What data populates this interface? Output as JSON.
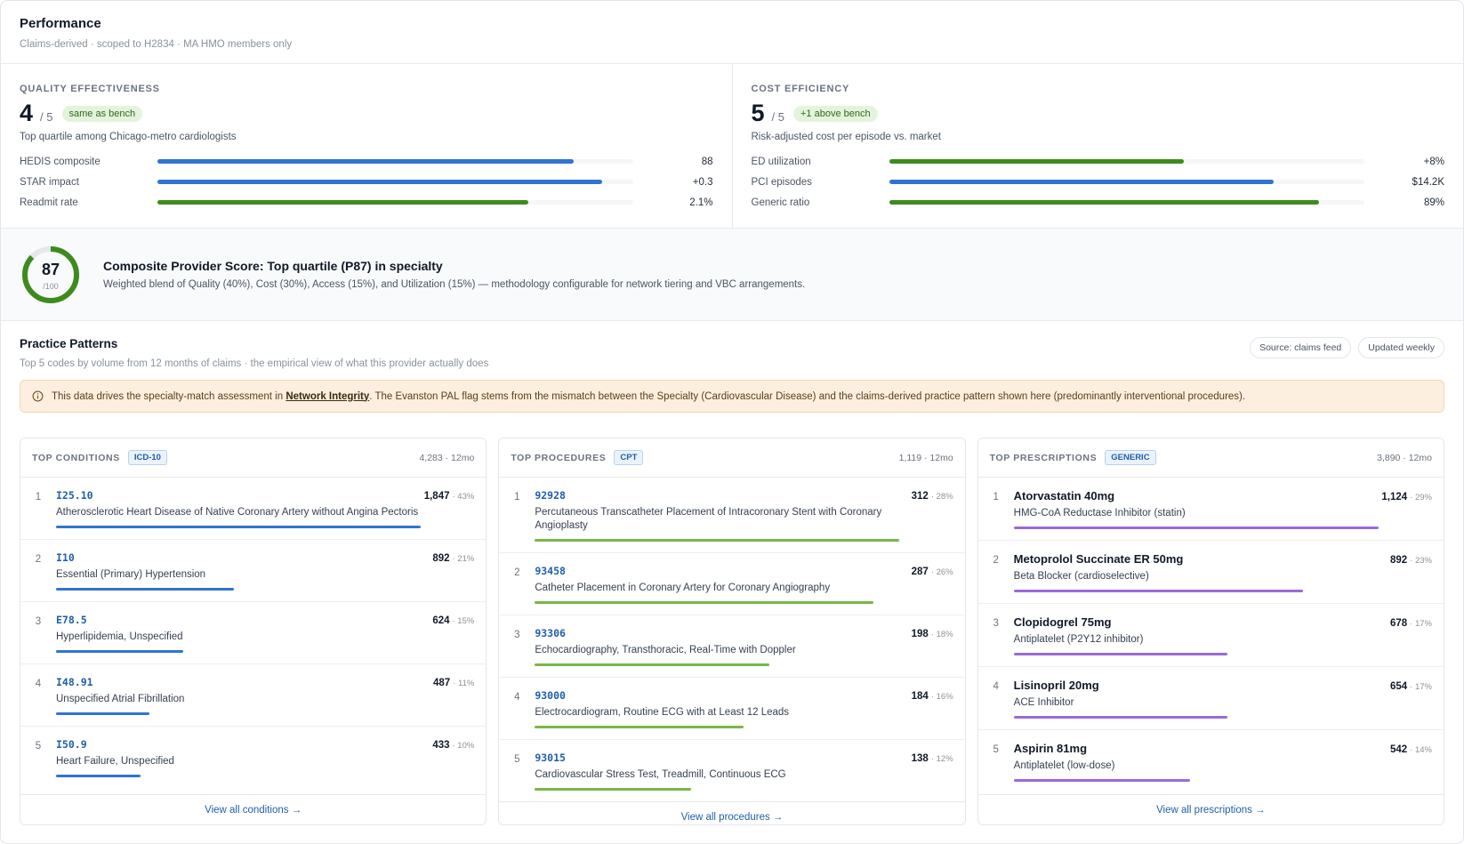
{
  "header": {
    "title": "Performance",
    "subtitle": "Claims-derived · scoped to H2834 · MA HMO members only"
  },
  "scorecards": [
    {
      "label": "QUALITY EFFECTIVENESS",
      "score": 4,
      "out_of": "/ 5",
      "badge": "same as bench",
      "description": "Top quartile among Chicago-metro cardiologists",
      "metrics": [
        {
          "name": "HEDIS composite",
          "value": 88,
          "color": "#2f74d0"
        },
        {
          "name": "STAR impact",
          "value": "+0.3",
          "color": "#2f74d0"
        },
        {
          "name": "Readmit rate",
          "value": "2.1%",
          "color": "#3d8b1f"
        }
      ]
    },
    {
      "label": "COST EFFICIENCY",
      "score": 5,
      "out_of": "/ 5",
      "badge": "+1 above bench",
      "description": "Risk-adjusted cost per episode vs. market",
      "metrics": [
        {
          "name": "ED utilization",
          "value": "+8%",
          "color": "#3d8b1f"
        },
        {
          "name": "PCI episodes",
          "value": "$14.2K",
          "color": "#2f74d0"
        },
        {
          "name": "Generic ratio",
          "value": "89%",
          "color": "#3d8b1f"
        }
      ]
    }
  ],
  "composite": {
    "score": 87,
    "scale": "/100",
    "title": "Composite Provider Score: Top quartile (P87) in specialty",
    "description": "Weighted blend of Quality (40%), Cost (30%), Access (15%), and Utilization (15%) — methodology configurable for network tiering and VBC arrangements."
  },
  "practice": {
    "title": "Practice Patterns",
    "subtitle": "Top 5 codes by volume from 12 months of claims · the empirical view of what this provider actually does",
    "tags": [
      "Source: claims feed",
      "Updated weekly"
    ],
    "notice": {
      "before": "This data drives the specialty-match assessment in ",
      "link": "Network Integrity",
      "after": ". The Evanston PAL flag stems from the mismatch between the Specialty (Cardiovascular Disease) and the claims-derived practice pattern shown here (predominantly interventional procedures)."
    }
  },
  "columns": [
    {
      "title": "TOP CONDITIONS",
      "tag": "ICD-10",
      "total": "4,283 · 12mo",
      "color": "#2f74d0",
      "footer": "View all conditions →",
      "items": [
        {
          "rank": 1,
          "code": "I25.10",
          "description": "Atherosclerotic Heart Disease of Native Coronary Artery without Angina Pectoris",
          "count": "1,847",
          "share": "· 43%"
        },
        {
          "rank": 2,
          "code": "I10",
          "description": "Essential (Primary) Hypertension",
          "count": "892",
          "share": "· 21%"
        },
        {
          "rank": 3,
          "code": "E78.5",
          "description": "Hyperlipidemia, Unspecified",
          "count": "624",
          "share": "· 15%"
        },
        {
          "rank": 4,
          "code": "I48.91",
          "description": "Unspecified Atrial Fibrillation",
          "count": "487",
          "share": "· 11%"
        },
        {
          "rank": 5,
          "code": "I50.9",
          "description": "Heart Failure, Unspecified",
          "count": "433",
          "share": "· 10%"
        }
      ]
    },
    {
      "title": "TOP PROCEDURES",
      "tag": "CPT",
      "total": "1,119 · 12mo",
      "color": "#7ab648",
      "footer": "View all procedures →",
      "items": [
        {
          "rank": 1,
          "code": "92928",
          "description": "Percutaneous Transcatheter Placement of Intracoronary Stent with Coronary Angioplasty",
          "count": "312",
          "share": "· 28%"
        },
        {
          "rank": 2,
          "code": "93458",
          "description": "Catheter Placement in Coronary Artery for Coronary Angiography",
          "count": "287",
          "share": "· 26%"
        },
        {
          "rank": 3,
          "code": "93306",
          "description": "Echocardiography, Transthoracic, Real-Time with Doppler",
          "count": "198",
          "share": "· 18%"
        },
        {
          "rank": 4,
          "code": "93000",
          "description": "Electrocardiogram, Routine ECG with at Least 12 Leads",
          "count": "184",
          "share": "· 16%"
        },
        {
          "rank": 5,
          "code": "93015",
          "description": "Cardiovascular Stress Test, Treadmill, Continuous ECG",
          "count": "138",
          "share": "· 12%"
        }
      ]
    },
    {
      "title": "TOP PRESCRIPTIONS",
      "tag": "GENERIC",
      "total": "3,890 · 12mo",
      "color": "#9b6ad6",
      "footer": "View all prescriptions →",
      "items": [
        {
          "rank": 1,
          "name": "Atorvastatin 40mg",
          "class": "HMG-CoA Reductase Inhibitor (statin)",
          "count": "1,124",
          "share": "· 29%"
        },
        {
          "rank": 2,
          "name": "Metoprolol Succinate ER 50mg",
          "class": "Beta Blocker (cardioselective)",
          "count": "892",
          "share": "· 23%"
        },
        {
          "rank": 3,
          "name": "Clopidogrel 75mg",
          "class": "Antiplatelet (P2Y12 inhibitor)",
          "count": "678",
          "share": "· 17%"
        },
        {
          "rank": 4,
          "name": "Lisinopril 20mg",
          "class": "ACE Inhibitor",
          "count": "654",
          "share": "· 17%"
        },
        {
          "rank": 5,
          "name": "Aspirin 81mg",
          "class": "Antiplatelet (low-dose)",
          "count": "542",
          "share": "· 14%"
        }
      ]
    }
  ]
}
